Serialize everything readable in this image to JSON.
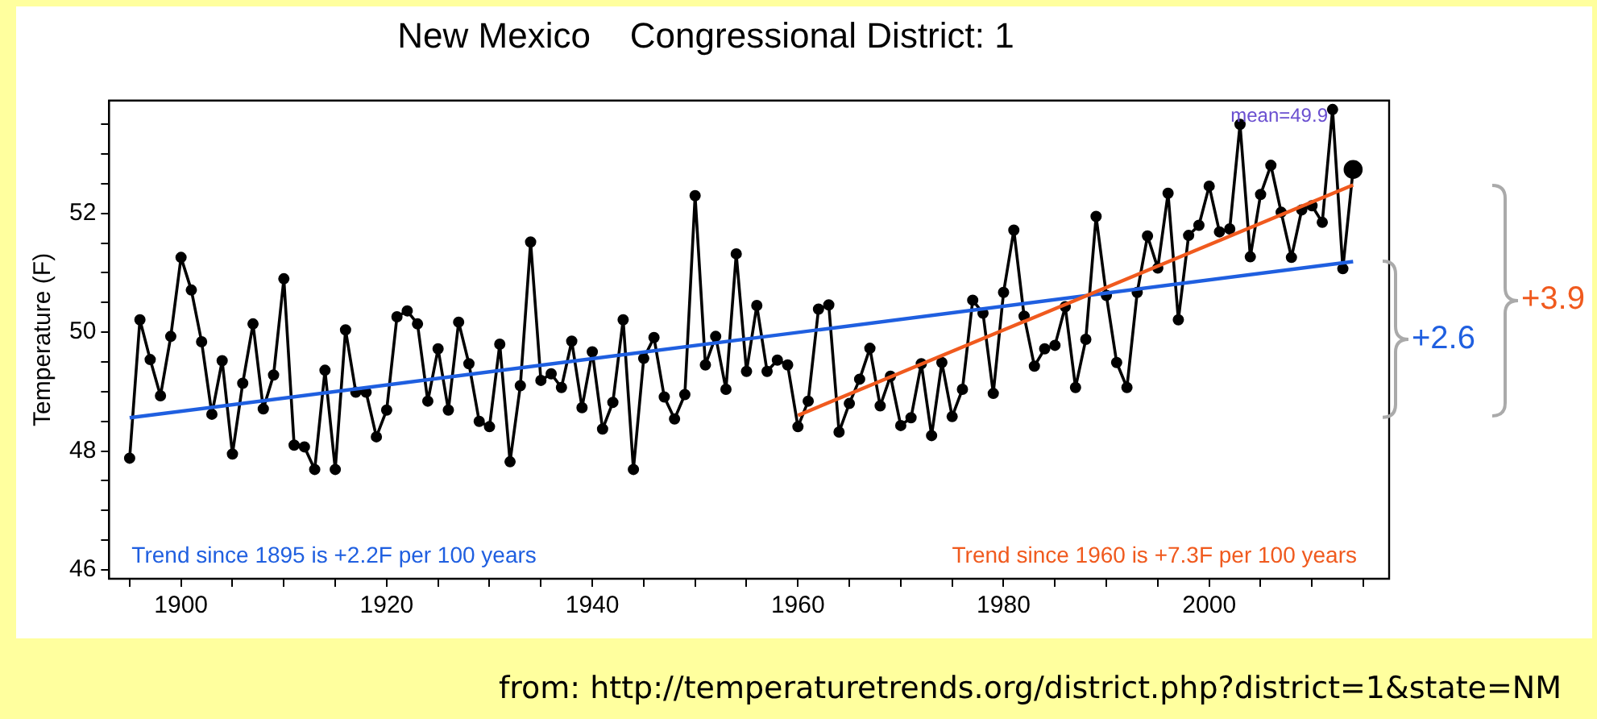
{
  "chart_data": {
    "type": "line",
    "title": "New Mexico    Congressional District: 1",
    "ylabel": "Temperature (F)",
    "x": [
      1895,
      1896,
      1897,
      1898,
      1899,
      1900,
      1901,
      1902,
      1903,
      1904,
      1905,
      1906,
      1907,
      1908,
      1909,
      1910,
      1911,
      1912,
      1913,
      1914,
      1915,
      1916,
      1917,
      1918,
      1919,
      1920,
      1921,
      1922,
      1923,
      1924,
      1925,
      1926,
      1927,
      1928,
      1929,
      1930,
      1931,
      1932,
      1933,
      1934,
      1935,
      1936,
      1937,
      1938,
      1939,
      1940,
      1941,
      1942,
      1943,
      1944,
      1945,
      1946,
      1947,
      1948,
      1949,
      1950,
      1951,
      1952,
      1953,
      1954,
      1955,
      1956,
      1957,
      1958,
      1959,
      1960,
      1961,
      1962,
      1963,
      1964,
      1965,
      1966,
      1967,
      1968,
      1969,
      1970,
      1971,
      1972,
      1973,
      1974,
      1975,
      1976,
      1977,
      1978,
      1979,
      1980,
      1981,
      1982,
      1983,
      1984,
      1985,
      1986,
      1987,
      1988,
      1989,
      1990,
      1991,
      1992,
      1993,
      1994,
      1995,
      1996,
      1997,
      1998,
      1999,
      2000,
      2001,
      2002,
      2003,
      2004,
      2005,
      2006,
      2007,
      2008,
      2009,
      2010,
      2011,
      2012,
      2013,
      2014
    ],
    "series": [
      {
        "color": "#000000",
        "values": [
          47.88,
          50.21,
          49.54,
          48.93,
          49.93,
          51.26,
          50.71,
          49.84,
          48.62,
          49.52,
          47.95,
          49.14,
          50.14,
          48.71,
          49.28,
          50.9,
          48.1,
          48.07,
          47.69,
          49.36,
          47.69,
          50.04,
          48.99,
          48.99,
          48.24,
          48.69,
          50.26,
          50.36,
          50.14,
          48.84,
          49.72,
          48.69,
          50.17,
          49.47,
          48.5,
          48.41,
          49.8,
          47.82,
          49.1,
          51.52,
          49.19,
          49.3,
          49.07,
          49.85,
          48.73,
          49.67,
          48.37,
          48.82,
          50.21,
          47.69,
          49.56,
          49.91,
          48.91,
          48.54,
          48.95,
          52.3,
          49.45,
          49.93,
          49.04,
          51.32,
          49.34,
          50.45,
          49.34,
          49.53,
          49.45,
          48.41,
          48.84,
          50.39,
          50.46,
          48.32,
          48.8,
          49.21,
          49.73,
          48.76,
          49.26,
          48.43,
          48.56,
          49.47,
          48.26,
          49.49,
          48.58,
          49.04,
          50.54,
          50.32,
          48.97,
          50.67,
          51.72,
          50.27,
          49.43,
          49.72,
          49.78,
          50.43,
          49.07,
          49.88,
          51.95,
          50.62,
          49.49,
          49.07,
          50.67,
          51.62,
          51.08,
          52.34,
          50.21,
          51.63,
          51.8,
          52.46,
          51.69,
          51.74,
          53.5,
          51.27,
          52.32,
          52.81,
          52.02,
          51.26,
          52.06,
          52.13,
          51.85,
          53.75,
          51.07,
          52.74
        ]
      },
      {
        "type": "line",
        "marker": "none",
        "color": "#1f5fe0",
        "x": [
          1895,
          2014
        ],
        "values": [
          48.56,
          51.19
        ]
      },
      {
        "type": "line",
        "marker": "none",
        "color": "#f05a1e",
        "x": [
          1960,
          2014
        ],
        "values": [
          48.6,
          52.48
        ]
      }
    ],
    "xlim": [
      1893,
      2017.5
    ],
    "xticks": [
      {
        "value": 1895,
        "label": null
      },
      1900,
      {
        "value": 1905,
        "label": null
      },
      {
        "value": 1910,
        "label": null
      },
      {
        "value": 1915,
        "label": null
      },
      1920,
      {
        "value": 1925,
        "label": null
      },
      {
        "value": 1930,
        "label": null
      },
      {
        "value": 1935,
        "label": null
      },
      1940,
      {
        "value": 1945,
        "label": null
      },
      {
        "value": 1950,
        "label": null
      },
      {
        "value": 1955,
        "label": null
      },
      1960,
      {
        "value": 1965,
        "label": null
      },
      {
        "value": 1970,
        "label": null
      },
      {
        "value": 1975,
        "label": null
      },
      1980,
      {
        "value": 1985,
        "label": null
      },
      {
        "value": 1990,
        "label": null
      },
      {
        "value": 1995,
        "label": null
      },
      2000,
      {
        "value": 2005,
        "label": null
      },
      {
        "value": 2010,
        "label": null
      },
      {
        "value": 2015,
        "label": null
      }
    ],
    "ylim": [
      45.85,
      53.9
    ],
    "yticks": [
      46,
      {
        "value": 46.5,
        "label": null
      },
      {
        "value": 47,
        "label": null
      },
      {
        "value": 47.5,
        "label": null
      },
      48,
      {
        "value": 48.5,
        "label": null
      },
      {
        "value": 49,
        "label": null
      },
      {
        "value": 49.5,
        "label": null
      },
      50,
      {
        "value": 50.5,
        "label": null
      },
      {
        "value": 51,
        "label": null
      },
      {
        "value": 51.5,
        "label": null
      },
      52,
      {
        "value": 52.5,
        "label": null
      },
      {
        "value": 53,
        "label": null
      },
      {
        "value": 53.5,
        "label": null
      }
    ],
    "marker": "circle",
    "line_style": "solid",
    "grid": false,
    "legend": false,
    "annotations": [
      "mean=49.9",
      "Trend since 1895 is +2.2F per 100 years",
      "Trend since 1960 is +7.3F per 100 years",
      "+2.6",
      "+3.9",
      "from: http://temperaturetrends.org/district.php?district=1&state=NM"
    ]
  }
}
